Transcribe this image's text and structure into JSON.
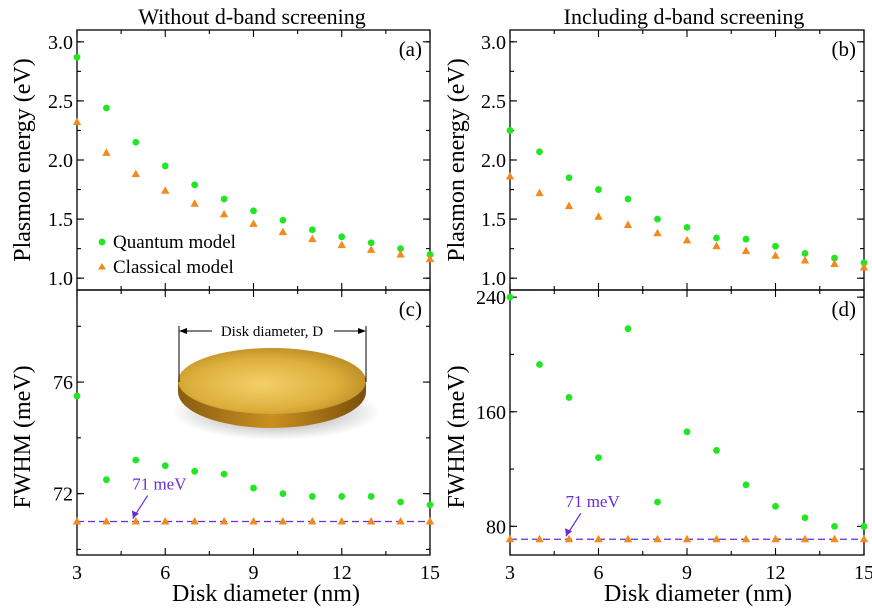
{
  "colors": {
    "quantum": "#22e622",
    "classical": "#f28a1e",
    "reference": "#6a2bd9",
    "frame": "#000000",
    "disk_gold": "#d9a52a"
  },
  "chart_data": [
    {
      "panel": "a",
      "type": "scatter",
      "title": "Without d-band screening",
      "panel_label": "(a)",
      "xlabel": "",
      "ylabel": "Plasmon energy (eV)",
      "xlim": [
        3,
        15
      ],
      "ylim": [
        0.9,
        3.1
      ],
      "xticks": [
        "3",
        "6",
        "9",
        "12",
        "15"
      ],
      "yticks": [
        "1.0",
        "1.5",
        "2.0",
        "2.5",
        "3.0"
      ],
      "x": [
        3,
        4,
        5,
        6,
        7,
        8,
        9,
        10,
        11,
        12,
        13,
        14,
        15
      ],
      "series": [
        {
          "name": "Quantum model",
          "marker": "circle",
          "values": [
            2.87,
            2.44,
            2.15,
            1.95,
            1.79,
            1.67,
            1.57,
            1.49,
            1.41,
            1.35,
            1.3,
            1.25,
            1.2
          ]
        },
        {
          "name": "Classical model",
          "marker": "triangle",
          "values": [
            2.32,
            2.06,
            1.88,
            1.74,
            1.63,
            1.54,
            1.46,
            1.39,
            1.33,
            1.28,
            1.24,
            1.2,
            1.16
          ]
        }
      ],
      "legend": {
        "position": "bottom-left",
        "items": [
          "Quantum model",
          "Classical model"
        ]
      }
    },
    {
      "panel": "b",
      "type": "scatter",
      "title": "Including d-band screening",
      "panel_label": "(b)",
      "xlabel": "",
      "ylabel": "Plasmon energy (eV)",
      "xlim": [
        3,
        15
      ],
      "ylim": [
        0.9,
        3.1
      ],
      "xticks": [
        "3",
        "6",
        "9",
        "12",
        "15"
      ],
      "yticks": [
        "1.0",
        "1.5",
        "2.0",
        "2.5",
        "3.0"
      ],
      "x": [
        3,
        4,
        5,
        6,
        7,
        8,
        9,
        10,
        11,
        12,
        13,
        14,
        15
      ],
      "series": [
        {
          "name": "Quantum model",
          "marker": "circle",
          "values": [
            2.25,
            2.07,
            1.85,
            1.75,
            1.67,
            1.5,
            1.43,
            1.34,
            1.33,
            1.27,
            1.21,
            1.17,
            1.13
          ]
        },
        {
          "name": "Classical model",
          "marker": "triangle",
          "values": [
            1.86,
            1.72,
            1.61,
            1.52,
            1.45,
            1.38,
            1.32,
            1.27,
            1.23,
            1.19,
            1.15,
            1.12,
            1.09
          ]
        }
      ]
    },
    {
      "panel": "c",
      "type": "scatter",
      "title": "",
      "panel_label": "(c)",
      "xlabel": "Disk diameter (nm)",
      "ylabel": "FWHM (meV)",
      "xlim": [
        3,
        15
      ],
      "ylim": [
        69.8,
        79.3
      ],
      "xticks": [
        "3",
        "6",
        "9",
        "12",
        "15"
      ],
      "yticks": [
        "72",
        "76"
      ],
      "x": [
        3,
        4,
        5,
        6,
        7,
        8,
        9,
        10,
        11,
        12,
        13,
        14,
        15
      ],
      "series": [
        {
          "name": "Quantum model",
          "marker": "circle",
          "values": [
            75.5,
            72.5,
            73.2,
            73.0,
            72.8,
            72.7,
            72.2,
            72.0,
            71.9,
            71.9,
            71.9,
            71.7,
            71.6
          ]
        },
        {
          "name": "Classical model",
          "marker": "triangle",
          "values": [
            71.0,
            71.0,
            71.0,
            71.0,
            71.0,
            71.0,
            71.0,
            71.0,
            71.0,
            71.0,
            71.0,
            71.0,
            71.0
          ]
        }
      ],
      "reference_line": {
        "value": 71,
        "label": "71 meV"
      },
      "inset": {
        "label": "Disk diameter, D"
      }
    },
    {
      "panel": "d",
      "type": "scatter",
      "title": "",
      "panel_label": "(d)",
      "xlabel": "Disk diameter (nm)",
      "ylabel": "FWHM (meV)",
      "xlim": [
        3,
        15
      ],
      "ylim": [
        60,
        245
      ],
      "xticks": [
        "3",
        "6",
        "9",
        "12",
        "15"
      ],
      "yticks": [
        "80",
        "160",
        "240"
      ],
      "x": [
        3,
        4,
        5,
        6,
        7,
        8,
        9,
        10,
        11,
        12,
        13,
        14,
        15
      ],
      "series": [
        {
          "name": "Quantum model",
          "marker": "circle",
          "values": [
            240,
            193,
            170,
            128,
            218,
            97,
            146,
            133,
            109,
            94,
            86,
            80,
            80
          ]
        },
        {
          "name": "Classical model",
          "marker": "triangle",
          "values": [
            71,
            71,
            71,
            71,
            71,
            71,
            71,
            71,
            71,
            71,
            71,
            71,
            71
          ]
        }
      ],
      "reference_line": {
        "value": 71,
        "label": "71 meV"
      }
    }
  ]
}
